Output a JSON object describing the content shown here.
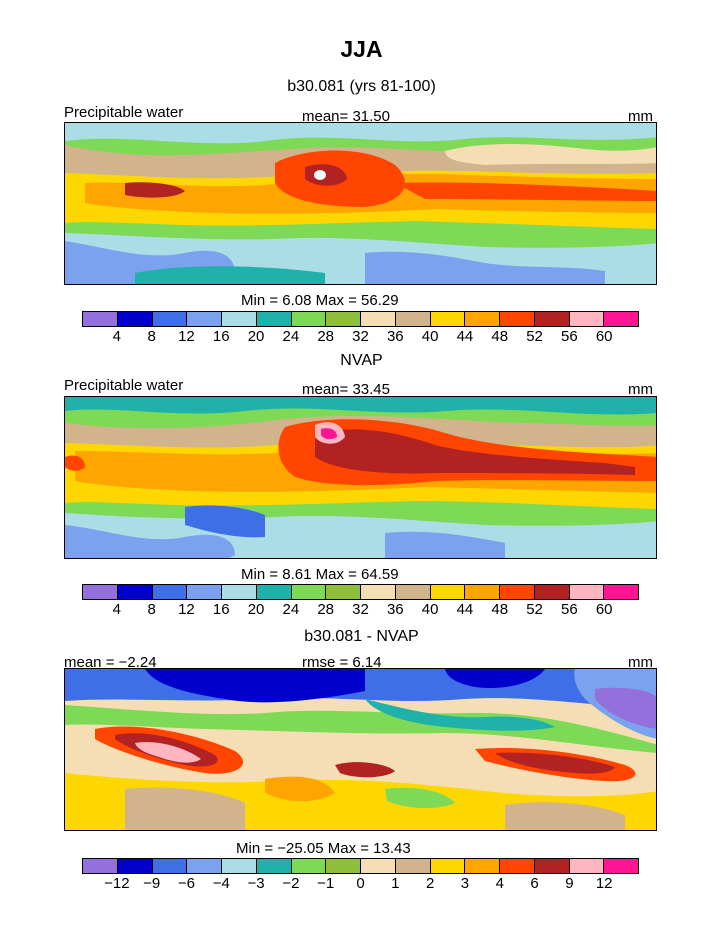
{
  "title": "JJA",
  "palette_main": [
    "#9370db",
    "#0000cd",
    "#3f6fe6",
    "#7ba2ee",
    "#abdde6",
    "#20b2aa",
    "#7ed957",
    "#8fbf3a",
    "#f5deb3",
    "#d2b48c",
    "#ffd700",
    "#ffa500",
    "#ff4500",
    "#b22222",
    "#ffb6c1",
    "#ff1493"
  ],
  "panels": [
    {
      "title": "b30.081 (yrs 81-100)",
      "left_label": "Precipitable water",
      "center_label": "mean=   31.50",
      "right_label": "mm",
      "minmax": "Min =    6.08  Max =   56.29",
      "ticks": [
        "4",
        "8",
        "12",
        "16",
        "20",
        "24",
        "28",
        "32",
        "36",
        "40",
        "44",
        "48",
        "52",
        "56",
        "60"
      ]
    },
    {
      "title": "NVAP",
      "left_label": "Precipitable water",
      "center_label": "mean=   33.45",
      "right_label": "mm",
      "minmax": "Min =    8.61  Max =   64.59",
      "ticks": [
        "4",
        "8",
        "12",
        "16",
        "20",
        "24",
        "28",
        "32",
        "36",
        "40",
        "44",
        "48",
        "52",
        "56",
        "60"
      ]
    },
    {
      "title": "b30.081 - NVAP",
      "left_label": "mean =  −2.24",
      "center_label": "rmse =    6.14",
      "right_label": "mm",
      "minmax": "Min = −25.05  Max =   13.43",
      "ticks": [
        "−12",
        "−9",
        "−6",
        "−4",
        "−3",
        "−2",
        "−1",
        "0",
        "1",
        "2",
        "3",
        "4",
        "6",
        "9",
        "12"
      ]
    }
  ],
  "chart_data": [
    {
      "type": "heatmap",
      "title": "b30.081 (yrs 81-100)",
      "variable": "Precipitable water",
      "units": "mm",
      "mean": 31.5,
      "min": 6.08,
      "max": 56.29,
      "contour_levels": [
        4,
        8,
        12,
        16,
        20,
        24,
        28,
        32,
        36,
        40,
        44,
        48,
        52,
        56,
        60
      ]
    },
    {
      "type": "heatmap",
      "title": "NVAP",
      "variable": "Precipitable water",
      "units": "mm",
      "mean": 33.45,
      "min": 8.61,
      "max": 64.59,
      "contour_levels": [
        4,
        8,
        12,
        16,
        20,
        24,
        28,
        32,
        36,
        40,
        44,
        48,
        52,
        56,
        60
      ]
    },
    {
      "type": "heatmap",
      "title": "b30.081 - NVAP",
      "units": "mm",
      "mean": -2.24,
      "rmse": 6.14,
      "min": -25.05,
      "max": 13.43,
      "contour_levels": [
        -12,
        -9,
        -6,
        -4,
        -3,
        -2,
        -1,
        0,
        1,
        2,
        3,
        4,
        6,
        9,
        12
      ]
    }
  ]
}
